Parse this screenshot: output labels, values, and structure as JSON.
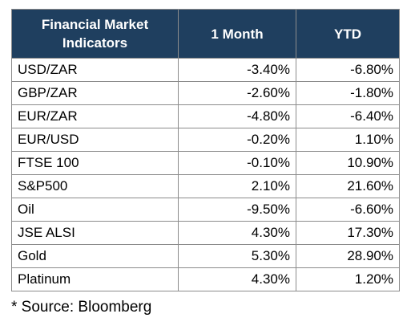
{
  "table": {
    "headers": [
      "Financial Market Indicators",
      "1 Month",
      "YTD"
    ],
    "rows": [
      {
        "label": "USD/ZAR",
        "month": "-3.40%",
        "ytd": "-6.80%"
      },
      {
        "label": "GBP/ZAR",
        "month": "-2.60%",
        "ytd": "-1.80%"
      },
      {
        "label": "EUR/ZAR",
        "month": "-4.80%",
        "ytd": "-6.40%"
      },
      {
        "label": "EUR/USD",
        "month": "-0.20%",
        "ytd": "1.10%"
      },
      {
        "label": "FTSE 100",
        "month": "-0.10%",
        "ytd": "10.90%"
      },
      {
        "label": "S&P500",
        "month": "2.10%",
        "ytd": "21.60%"
      },
      {
        "label": "Oil",
        "month": "-9.50%",
        "ytd": "-6.60%"
      },
      {
        "label": "JSE ALSI",
        "month": "4.30%",
        "ytd": "17.30%"
      },
      {
        "label": "Gold",
        "month": "5.30%",
        "ytd": "28.90%"
      },
      {
        "label": "Platinum",
        "month": "4.30%",
        "ytd": "1.20%"
      }
    ]
  },
  "footnote": "* Source: Bloomberg",
  "colors": {
    "header_background": "#1f3f5f",
    "header_text": "#ffffff",
    "grid_lines": "#8c8c8c"
  }
}
